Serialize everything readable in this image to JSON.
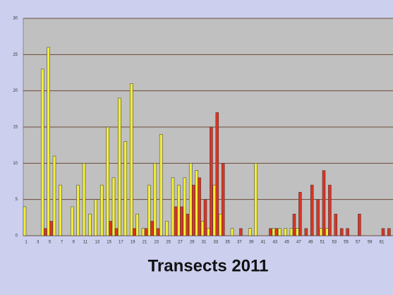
{
  "chart_data": {
    "type": "bar",
    "title": "Transects 2011",
    "categories": [
      "1",
      null,
      "3",
      null,
      "5",
      null,
      "7",
      null,
      "9",
      null,
      "11",
      null,
      "13",
      null,
      "15",
      null,
      "17",
      null,
      "19",
      null,
      "21",
      null,
      "23",
      null,
      "25",
      null,
      "27",
      null,
      "29",
      null,
      "31",
      null,
      "33",
      null,
      "35",
      null,
      "37",
      null,
      "39",
      null,
      "41",
      null,
      "43",
      null,
      "45",
      null,
      "47",
      null,
      "49",
      null,
      "51",
      null,
      "53",
      null,
      "55",
      null,
      "57",
      null,
      "59",
      null,
      "61",
      null
    ],
    "series": [
      {
        "name": "yellow",
        "color": "#f2ee3a",
        "values": [
          4,
          0,
          0,
          23,
          26,
          11,
          7,
          0,
          4,
          7,
          10,
          3,
          5,
          7,
          15,
          8,
          19,
          13,
          21,
          3,
          1,
          7,
          10,
          14,
          2,
          8,
          7,
          8,
          10,
          9,
          2,
          1,
          7,
          3,
          0,
          1,
          0,
          0,
          1,
          10,
          0,
          0,
          1,
          1,
          1,
          1,
          1,
          0,
          0,
          0,
          1,
          1,
          0,
          0,
          0,
          0,
          0,
          0,
          0,
          0,
          0,
          0
        ]
      },
      {
        "name": "red",
        "color": "#dd3322",
        "values": [
          0,
          0,
          0,
          1,
          2,
          0,
          0,
          0,
          0,
          0,
          0,
          0,
          0,
          0,
          2,
          1,
          0,
          0,
          1,
          0,
          1,
          2,
          1,
          0,
          0,
          4,
          4,
          3,
          7,
          8,
          5,
          15,
          17,
          10,
          0,
          0,
          1,
          0,
          0,
          0,
          0,
          1,
          1,
          0,
          0,
          3,
          6,
          1,
          7,
          5,
          9,
          7,
          3,
          1,
          1,
          0,
          3,
          0,
          0,
          0,
          1,
          1
        ]
      }
    ],
    "ylim": [
      0,
      30
    ],
    "yticks": [
      0,
      5,
      10,
      15,
      20,
      25,
      30
    ],
    "grid": true
  }
}
